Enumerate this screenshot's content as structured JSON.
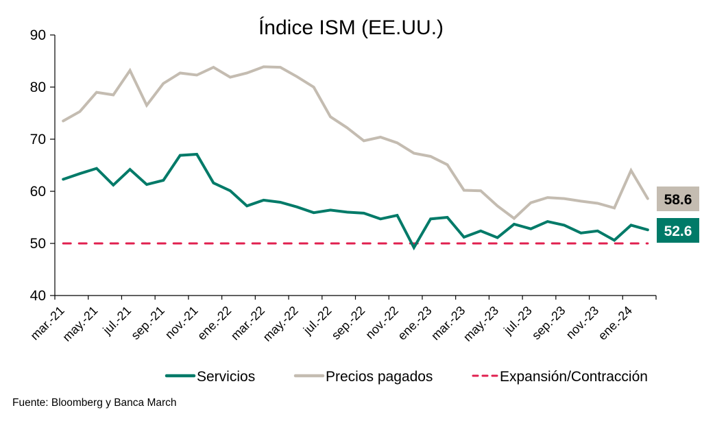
{
  "chart_data": {
    "type": "line",
    "title": "Índice ISM (EE.UU.)",
    "xlabel": "",
    "ylabel": "",
    "ylim": [
      40,
      90
    ],
    "yticks": [
      40,
      50,
      60,
      70,
      80,
      90
    ],
    "grid": false,
    "legend_position": "bottom",
    "x": [
      "mar.-21",
      "abr.-21",
      "may.-21",
      "jun.-21",
      "jul.-21",
      "ago.-21",
      "sep.-21",
      "oct.-21",
      "nov.-21",
      "dic.-21",
      "ene.-22",
      "feb.-22",
      "mar.-22",
      "abr.-22",
      "may.-22",
      "jun.-22",
      "jul.-22",
      "ago.-22",
      "sep.-22",
      "oct.-22",
      "nov.-22",
      "dic.-22",
      "ene.-23",
      "feb.-23",
      "mar.-23",
      "abr.-23",
      "may.-23",
      "jun.-23",
      "jul.-23",
      "ago.-23",
      "sep.-23",
      "oct.-23",
      "nov.-23",
      "dic.-23",
      "ene.-24",
      "feb.-24"
    ],
    "xtick_labels": [
      "mar.-21",
      "may.-21",
      "jul.-21",
      "sep.-21",
      "nov.-21",
      "ene.-22",
      "mar.-22",
      "may.-22",
      "jul.-22",
      "sep.-22",
      "nov.-22",
      "ene.-23",
      "mar.-23",
      "may.-23",
      "jul.-23",
      "sep.-23",
      "nov.-23",
      "ene.-24"
    ],
    "series": [
      {
        "name": "Servicios",
        "color": "#007a68",
        "style": "solid",
        "values": [
          62.3,
          63.4,
          64.4,
          61.2,
          64.2,
          61.3,
          62.1,
          66.9,
          67.1,
          61.6,
          60.1,
          57.2,
          58.3,
          57.9,
          57.0,
          55.9,
          56.4,
          56.0,
          55.8,
          54.7,
          55.4,
          49.2,
          54.7,
          55.0,
          51.2,
          52.4,
          51.1,
          53.7,
          52.8,
          54.2,
          53.5,
          52.0,
          52.4,
          50.6,
          53.5,
          52.6
        ]
      },
      {
        "name": "Precios pagados",
        "color": "#c4bcb1",
        "style": "solid",
        "values": [
          73.5,
          75.3,
          79.0,
          78.5,
          83.2,
          76.5,
          80.7,
          82.7,
          82.3,
          83.8,
          81.9,
          82.7,
          83.9,
          83.8,
          82.0,
          80.0,
          74.3,
          72.2,
          69.7,
          70.4,
          69.3,
          67.3,
          66.7,
          65.1,
          60.2,
          60.1,
          57.2,
          54.8,
          57.8,
          58.8,
          58.6,
          58.1,
          57.7,
          56.8,
          64.0,
          58.6
        ]
      },
      {
        "name": "Expansión/Contracción",
        "color": "#e0204f",
        "style": "dashed",
        "values": [
          50,
          50,
          50,
          50,
          50,
          50,
          50,
          50,
          50,
          50,
          50,
          50,
          50,
          50,
          50,
          50,
          50,
          50,
          50,
          50,
          50,
          50,
          50,
          50,
          50,
          50,
          50,
          50,
          50,
          50,
          50,
          50,
          50,
          50,
          50,
          50
        ]
      }
    ],
    "end_labels": [
      {
        "series": "Precios pagados",
        "text": "58.6",
        "bg": "#c4bcb1",
        "fg": "#000000"
      },
      {
        "series": "Servicios",
        "text": "52.6",
        "bg": "#007a68",
        "fg": "#ffffff"
      }
    ],
    "source": "Fuente: Bloomberg y Banca March"
  }
}
